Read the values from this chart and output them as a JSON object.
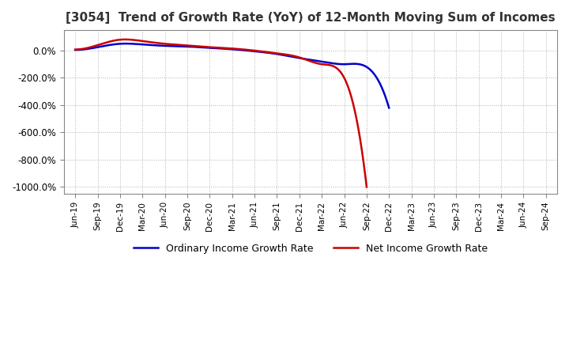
{
  "title": "[3054]  Trend of Growth Rate (YoY) of 12-Month Moving Sum of Incomes",
  "ylim": [
    -1050,
    150
  ],
  "yticks": [
    0,
    -200,
    -400,
    -600,
    -800,
    -1000
  ],
  "background_color": "#ffffff",
  "plot_bg_color": "#ffffff",
  "grid_color": "#aaaaaa",
  "legend_labels": [
    "Ordinary Income Growth Rate",
    "Net Income Growth Rate"
  ],
  "line_colors": [
    "#0000cc",
    "#cc0000"
  ],
  "x_labels": [
    "Jun-19",
    "Sep-19",
    "Dec-19",
    "Mar-20",
    "Jun-20",
    "Sep-20",
    "Dec-20",
    "Mar-21",
    "Jun-21",
    "Sep-21",
    "Dec-21",
    "Mar-22",
    "Jun-22",
    "Sep-22",
    "Dec-22",
    "Mar-23",
    "Jun-23",
    "Sep-23",
    "Dec-23",
    "Mar-24",
    "Jun-24",
    "Sep-24"
  ],
  "ordinary_income": [
    5,
    25,
    50,
    45,
    35,
    30,
    20,
    10,
    -5,
    -25,
    -55,
    -80,
    -100,
    -120,
    -420,
    null,
    null,
    null,
    null,
    null,
    null,
    null
  ],
  "net_income": [
    8,
    40,
    80,
    70,
    50,
    38,
    25,
    15,
    0,
    -20,
    -50,
    -100,
    -200,
    -1000,
    null,
    null,
    null,
    null,
    null,
    null,
    null,
    null
  ]
}
